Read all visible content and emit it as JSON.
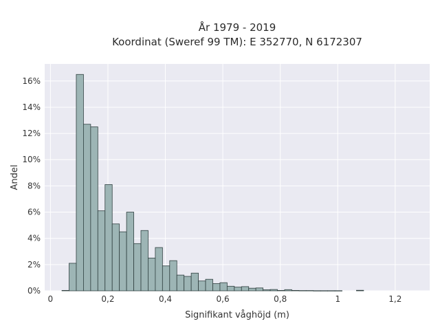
{
  "chart_data": {
    "type": "bar",
    "histogram": true,
    "title_lines": [
      "År 1979 - 2019",
      "Koordinat (Sweref 99 TM): E 352770, N 6172307"
    ],
    "xlabel": "Signifikant våghöjd (m)",
    "ylabel": "Andel",
    "xlim": [
      -0.02,
      1.32
    ],
    "ylim": [
      0,
      0.173
    ],
    "x_ticks": [
      0,
      0.2,
      0.4,
      0.6,
      0.8,
      1.0,
      1.2
    ],
    "x_tick_labels": [
      "0",
      "0,2",
      "0,4",
      "0,6",
      "0,8",
      "1",
      "1,2"
    ],
    "y_ticks": [
      0,
      0.02,
      0.04,
      0.06,
      0.08,
      0.1,
      0.12,
      0.14,
      0.16
    ],
    "y_tick_labels": [
      "0%",
      "2%",
      "4%",
      "6%",
      "8%",
      "10%",
      "12%",
      "14%",
      "16%"
    ],
    "grid": true,
    "legend": "none",
    "bin_width": 0.025,
    "bin_start": 0.04,
    "values": [
      0.0003,
      0.021,
      0.165,
      0.127,
      0.125,
      0.061,
      0.081,
      0.051,
      0.045,
      0.06,
      0.036,
      0.046,
      0.025,
      0.033,
      0.019,
      0.023,
      0.012,
      0.011,
      0.0135,
      0.0075,
      0.0088,
      0.0055,
      0.0062,
      0.0035,
      0.0028,
      0.0032,
      0.002,
      0.0022,
      0.0008,
      0.001,
      0.0003,
      0.0009,
      0.0003,
      0.0002,
      0.0002,
      0.0001,
      0.0001,
      0.0001,
      0.0001,
      0.0,
      0.0,
      0.0004
    ],
    "colors": {
      "bar_fill": "#9db5b5",
      "bar_edge": "#2f3f3f",
      "plot_background": "#eaeaf2",
      "grid": "#ffffff"
    }
  }
}
